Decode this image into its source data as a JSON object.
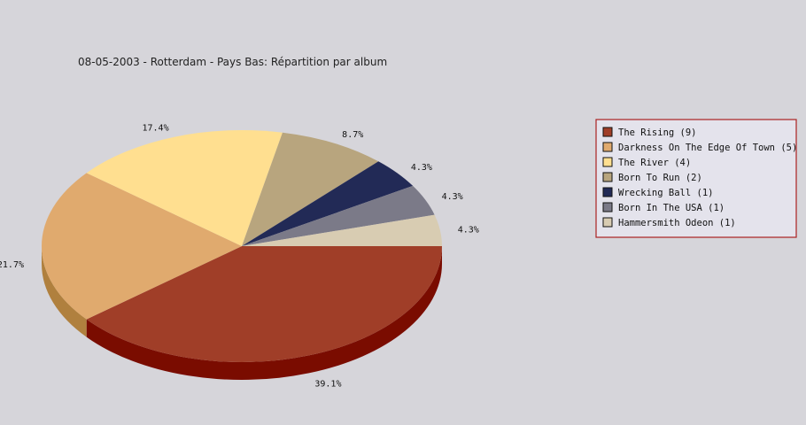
{
  "chart_data": {
    "type": "pie",
    "title": "08-05-2003 - Rotterdam - Pays Bas:  Répartition par album",
    "slices": [
      {
        "label": "The Rising (9)",
        "value": 9,
        "pct_label": "39.1%",
        "color": "#a03e28",
        "side_color": "#7a0c00"
      },
      {
        "label": "Darkness On The Edge Of Town (5)",
        "value": 5,
        "pct_label": "21.7%",
        "color": "#e0aa6e",
        "side_color": "#b0803e"
      },
      {
        "label": "The River (4)",
        "value": 4,
        "pct_label": "17.4%",
        "color": "#ffdf90",
        "side_color": "#ccaa60"
      },
      {
        "label": "Born To Run (2)",
        "value": 2,
        "pct_label": "8.7%",
        "color": "#b8a57e",
        "side_color": "#887550"
      },
      {
        "label": "Wrecking Ball (1)",
        "value": 1,
        "pct_label": "4.3%",
        "color": "#222a56",
        "side_color": "#10153a"
      },
      {
        "label": "Born In The USA (1)",
        "value": 1,
        "pct_label": "4.3%",
        "color": "#7b7a88",
        "side_color": "#505060"
      },
      {
        "label": "Hammersmith Odeon  (1)",
        "value": 1,
        "pct_label": "4.3%",
        "color": "#d8ccb2",
        "side_color": "#a89c82"
      }
    ],
    "legend_position": "right",
    "legend_border_color": "#aa2222",
    "legend_bg_color": "#e4e3ec"
  }
}
